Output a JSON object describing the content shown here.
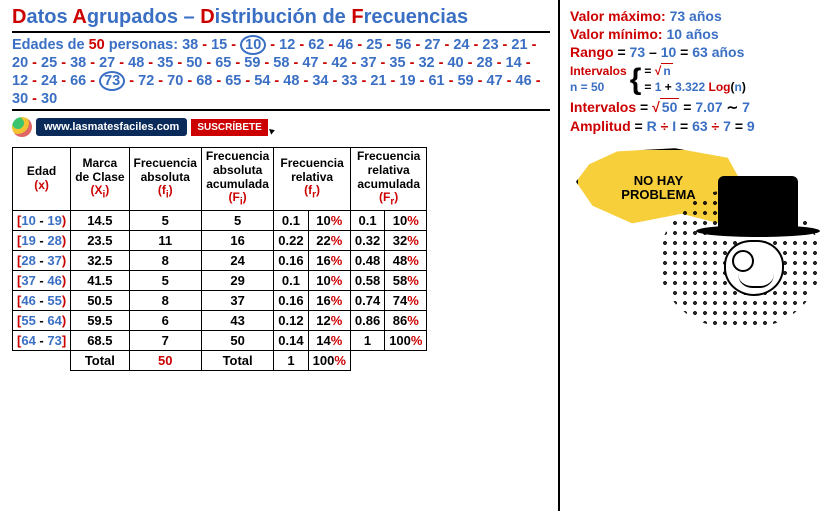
{
  "title": {
    "parts": [
      {
        "t": "D",
        "cls": "cap"
      },
      {
        "t": "atos ",
        "cls": "light"
      },
      {
        "t": "A",
        "cls": "cap"
      },
      {
        "t": "grupados ",
        "cls": "light"
      },
      {
        "t": "– ",
        "cls": "light"
      },
      {
        "t": "D",
        "cls": "cap"
      },
      {
        "t": "istribución de ",
        "cls": "light"
      },
      {
        "t": "F",
        "cls": "cap"
      },
      {
        "t": "recuencias",
        "cls": "light"
      }
    ]
  },
  "data_intro": {
    "label": "Edades de ",
    "n": "50",
    "suffix": " personas:"
  },
  "data_values": [
    38,
    15,
    10,
    12,
    62,
    46,
    25,
    56,
    27,
    24,
    23,
    21,
    20,
    25,
    38,
    27,
    48,
    35,
    50,
    65,
    59,
    58,
    47,
    42,
    37,
    35,
    32,
    40,
    28,
    14,
    12,
    24,
    66,
    73,
    72,
    70,
    68,
    65,
    54,
    48,
    34,
    33,
    21,
    19,
    61,
    59,
    47,
    46,
    30,
    30
  ],
  "circled_indices": [
    2,
    33
  ],
  "site": {
    "url": "www.lasmatesfaciles.com",
    "cta": "SUSCRÍBETE"
  },
  "table": {
    "headers": [
      {
        "l1": "Edad",
        "sym": "(x)"
      },
      {
        "l1": "Marca",
        "l2": "de Clase",
        "sym": "(X",
        "sub": "i",
        "close": ")"
      },
      {
        "l1": "Frecuencia",
        "l2": "absoluta",
        "sym": "(f",
        "sub": "i",
        "close": ")"
      },
      {
        "l1": "Frecuencia",
        "l2": "absoluta",
        "l3": "acumulada",
        "sym": "(F",
        "sub": "i",
        "close": ")"
      },
      {
        "l1": "Frecuencia",
        "l2": "relativa",
        "sym": "(f",
        "sub": "r",
        "close": ")"
      },
      {
        "l1": "Frecuencia",
        "l2": "relativa",
        "l3": "acumulada",
        "sym": "(F",
        "sub": "r",
        "close": ")"
      }
    ],
    "rows": [
      {
        "int": [
          "[",
          "10",
          " - ",
          "19",
          ")"
        ],
        "mark": "14.5",
        "fi": "5",
        "Fi": "5",
        "fr": "0.1",
        "frp": "10",
        "Fr": "0.1",
        "Frp": "10"
      },
      {
        "int": [
          "[",
          "19",
          " - ",
          "28",
          ")"
        ],
        "mark": "23.5",
        "fi": "11",
        "Fi": "16",
        "fr": "0.22",
        "frp": "22",
        "Fr": "0.32",
        "Frp": "32"
      },
      {
        "int": [
          "[",
          "28",
          " - ",
          "37",
          ")"
        ],
        "mark": "32.5",
        "fi": "8",
        "Fi": "24",
        "fr": "0.16",
        "frp": "16",
        "Fr": "0.48",
        "Frp": "48"
      },
      {
        "int": [
          "[",
          "37",
          " - ",
          "46",
          ")"
        ],
        "mark": "41.5",
        "fi": "5",
        "Fi": "29",
        "fr": "0.1",
        "frp": "10",
        "Fr": "0.58",
        "Frp": "58"
      },
      {
        "int": [
          "[",
          "46",
          " - ",
          "55",
          ")"
        ],
        "mark": "50.5",
        "fi": "8",
        "Fi": "37",
        "fr": "0.16",
        "frp": "16",
        "Fr": "0.74",
        "Frp": "74"
      },
      {
        "int": [
          "[",
          "55",
          " - ",
          "64",
          ")"
        ],
        "mark": "59.5",
        "fi": "6",
        "Fi": "43",
        "fr": "0.12",
        "frp": "12",
        "Fr": "0.86",
        "Frp": "86"
      },
      {
        "int": [
          "[",
          "64",
          " - ",
          "73",
          "]"
        ],
        "mark": "68.5",
        "fi": "7",
        "Fi": "50",
        "fr": "0.14",
        "frp": "14",
        "Fr": "1",
        "Frp": "100"
      }
    ],
    "totals": {
      "label": "Total",
      "fi": "50",
      "Fi": "Total",
      "fr": "1",
      "frp": "100"
    }
  },
  "calc": {
    "max": {
      "label": "Valor máximo:",
      "v": "73 años"
    },
    "min": {
      "label": "Valor mínimo:",
      "v": "10 años"
    },
    "rango": {
      "label": "Rango",
      "a": "73",
      "b": "10",
      "r": "63 años"
    },
    "interv_label": "Intervalos",
    "n_label": "n = 50",
    "sqrt_n": "n",
    "log_formula": {
      "a": "1",
      "b": "3.322",
      "c": "Log",
      "d": "n"
    },
    "interv2": {
      "a": "50",
      "b": "7.07",
      "c": "7"
    },
    "ampl": {
      "label": "Amplitud",
      "R": "R",
      "I": "I",
      "v1": "63",
      "v2": "7",
      "r": "9"
    }
  },
  "meme_text": "NO HAY\nPROBLEMA"
}
